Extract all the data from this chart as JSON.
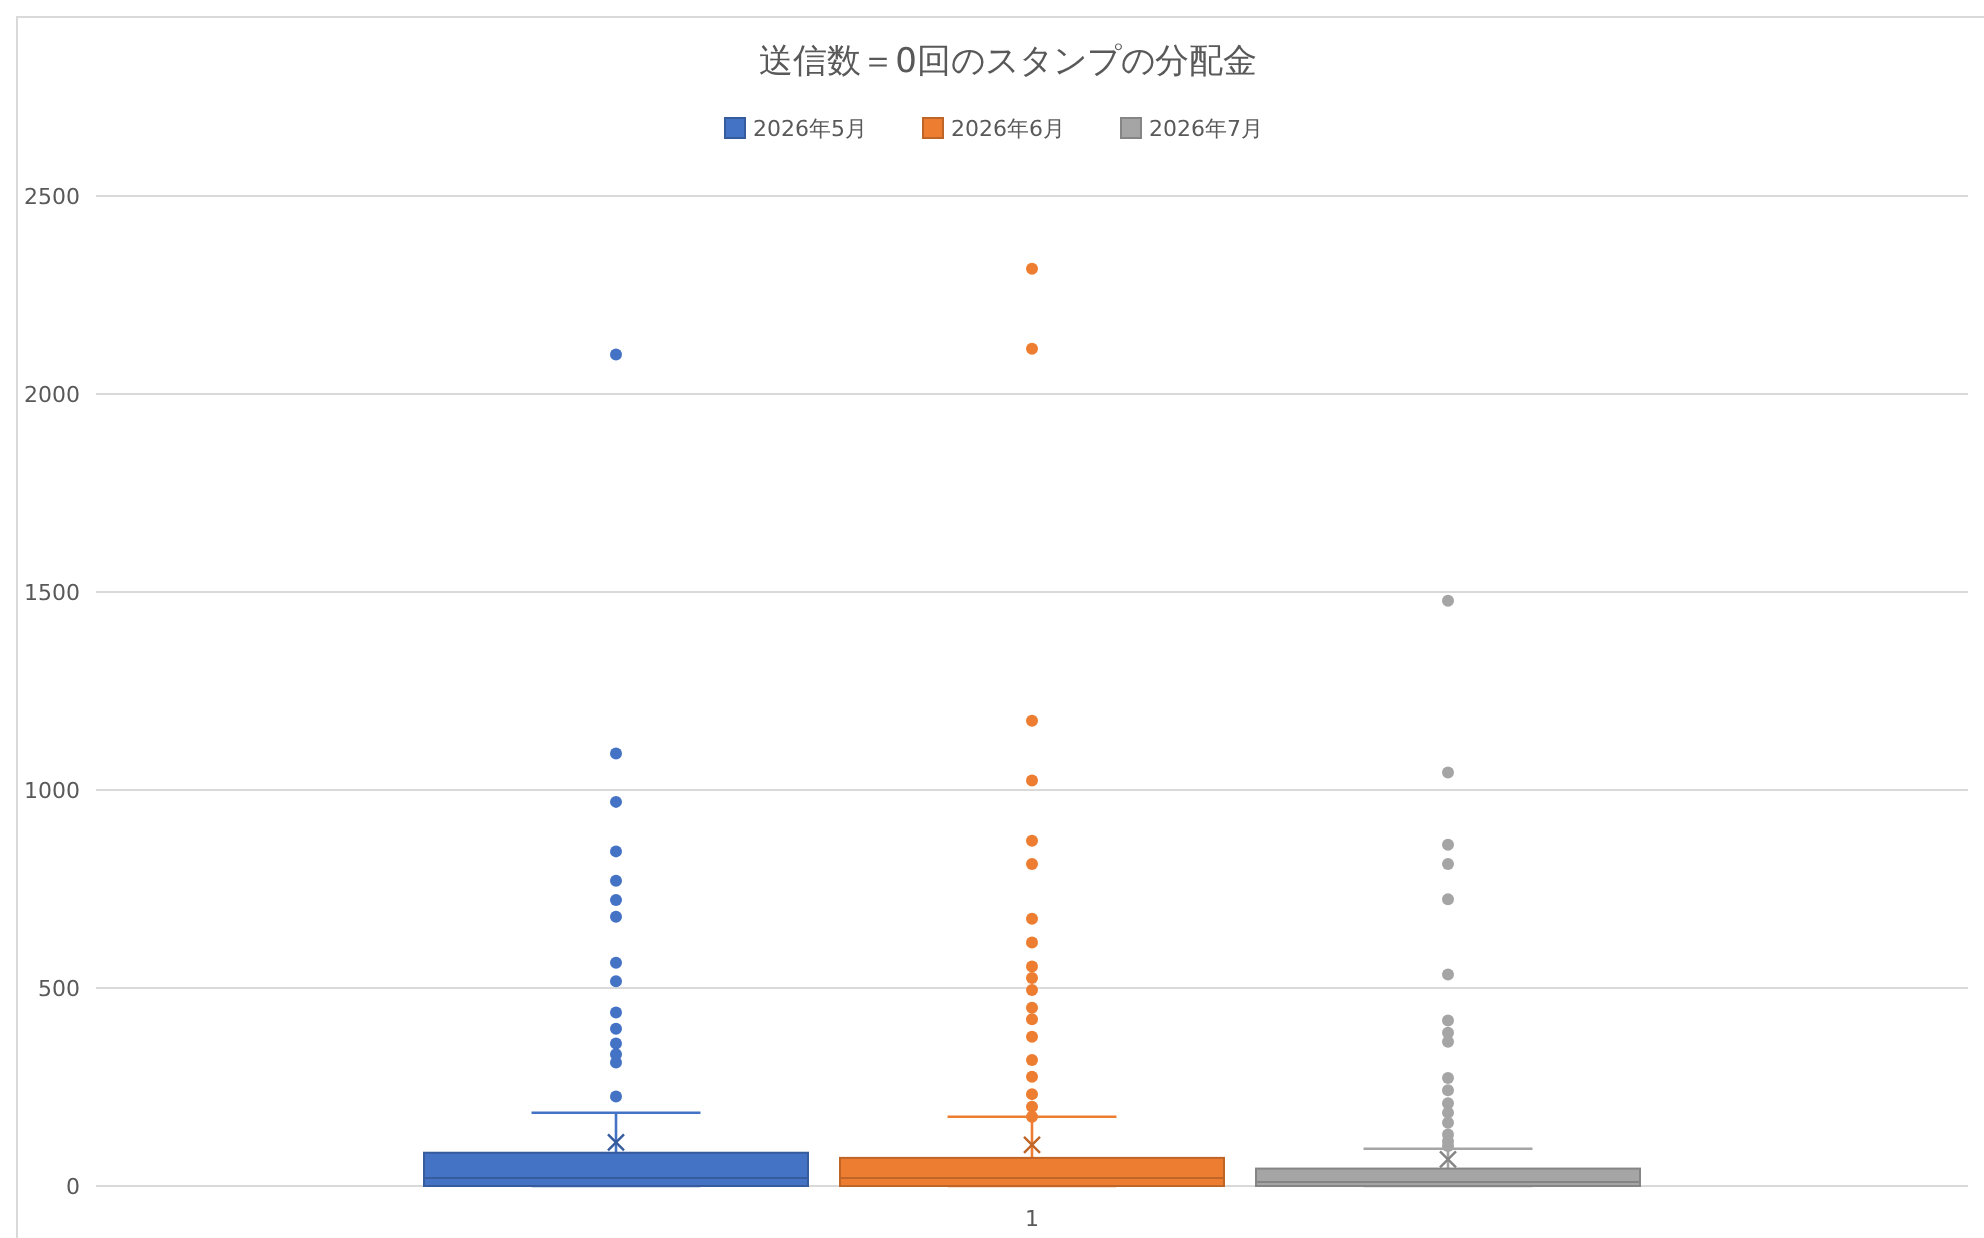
{
  "chart_data": {
    "type": "box",
    "title": "送信数＝0回のスタンプの分配金",
    "categories": [
      "1"
    ],
    "legend": "top",
    "grid": "y",
    "ylim": [
      0,
      2500
    ],
    "yticks": [
      0,
      500,
      1000,
      1500,
      2000,
      2500
    ],
    "series": [
      {
        "name": "2026年5月",
        "color": "#4472c4",
        "boxes": [
          {
            "low": 0,
            "q1": 0,
            "median": 20,
            "q3": 84,
            "high": 185,
            "mean": 110,
            "outliers": [
              2100,
              1092,
              970,
              845,
              771,
              722,
              680,
              564,
              517,
              438,
              397,
              360,
              333,
              312,
              226
            ]
          }
        ]
      },
      {
        "name": "2026年6月",
        "color": "#ed7d31",
        "boxes": [
          {
            "low": 0,
            "q1": 0,
            "median": 20,
            "q3": 71,
            "high": 175,
            "mean": 104,
            "outliers": [
              2316,
              2114,
              1175,
              1024,
              872,
              813,
              675,
              615,
              554,
              525,
              495,
              450,
              421,
              377,
              318,
              276,
              232,
              200,
              175
            ]
          }
        ]
      },
      {
        "name": "2026年7月",
        "color": "#a5a5a5",
        "boxes": [
          {
            "low": 0,
            "q1": 0,
            "median": 10,
            "q3": 44,
            "high": 94,
            "mean": 67,
            "outliers": [
              1478,
              1044,
              862,
              813,
              724,
              534,
              418,
              387,
              364,
              273,
              242,
              209,
              185,
              160,
              130,
              113,
              101
            ]
          }
        ]
      }
    ]
  }
}
